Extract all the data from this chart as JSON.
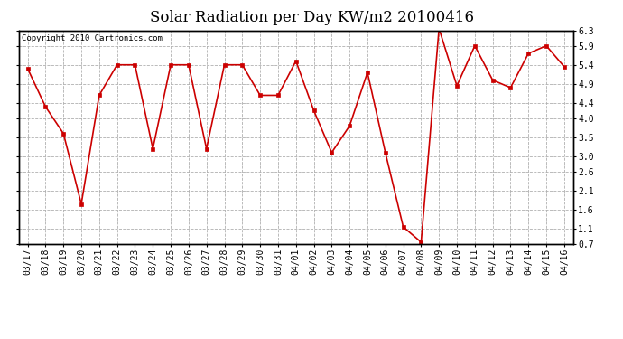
{
  "title": "Solar Radiation per Day KW/m2 20100416",
  "copyright": "Copyright 2010 Cartronics.com",
  "labels": [
    "03/17",
    "03/18",
    "03/19",
    "03/20",
    "03/21",
    "03/22",
    "03/23",
    "03/24",
    "03/25",
    "03/26",
    "03/27",
    "03/28",
    "03/29",
    "03/30",
    "03/31",
    "04/01",
    "04/02",
    "04/03",
    "04/04",
    "04/05",
    "04/06",
    "04/07",
    "04/08",
    "04/09",
    "04/10",
    "04/11",
    "04/12",
    "04/13",
    "04/14",
    "04/15",
    "04/16"
  ],
  "values": [
    5.3,
    4.3,
    3.6,
    1.75,
    4.6,
    5.4,
    5.4,
    3.2,
    5.4,
    5.4,
    3.2,
    5.4,
    5.4,
    4.6,
    4.6,
    5.5,
    4.2,
    3.1,
    3.8,
    5.2,
    3.1,
    1.15,
    0.75,
    6.35,
    4.85,
    5.9,
    5.0,
    4.8,
    5.7,
    5.9,
    5.35
  ],
  "line_color": "#cc0000",
  "marker_color": "#cc0000",
  "background_color": "#ffffff",
  "grid_color": "#b0b0b0",
  "ylim_min": 0.7,
  "ylim_max": 6.3,
  "yticks": [
    0.7,
    1.1,
    1.6,
    2.1,
    2.6,
    3.0,
    3.5,
    4.0,
    4.4,
    4.9,
    5.4,
    5.9,
    6.3
  ],
  "title_fontsize": 12,
  "copyright_fontsize": 6.5,
  "tick_fontsize": 7,
  "fig_width": 6.9,
  "fig_height": 3.75,
  "dpi": 100
}
